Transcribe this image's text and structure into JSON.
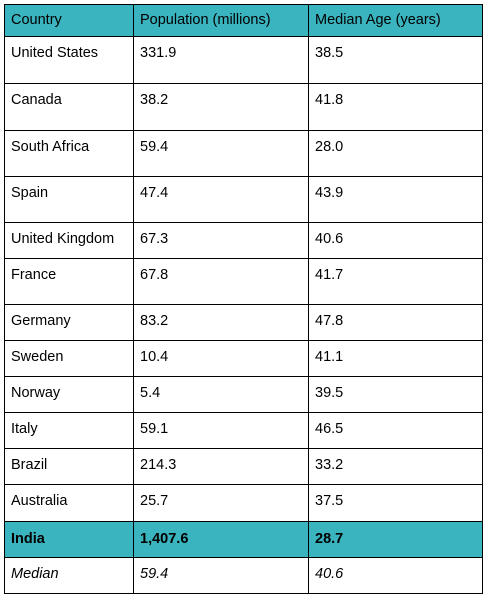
{
  "table": {
    "headers": [
      "Country",
      "Population (millions)",
      "Median Age (years)"
    ],
    "rows": [
      [
        "United States",
        "331.9",
        "38.5"
      ],
      [
        "Canada",
        "38.2",
        "41.8"
      ],
      [
        "South Africa",
        "59.4",
        "28.0"
      ],
      [
        "Spain",
        "47.4",
        "43.9"
      ],
      [
        "United Kingdom",
        "67.3",
        "40.6"
      ],
      [
        "France",
        "67.8",
        "41.7"
      ],
      [
        "Germany",
        "83.2",
        "47.8"
      ],
      [
        "Sweden",
        "10.4",
        "41.1"
      ],
      [
        "Norway",
        "5.4",
        "39.5"
      ],
      [
        "Italy",
        "59.1",
        "46.5"
      ],
      [
        "Brazil",
        "214.3",
        "33.2"
      ],
      [
        "Australia",
        "25.7",
        "37.5"
      ]
    ],
    "highlight_row": [
      "India",
      "1,407.6",
      "28.7"
    ],
    "median_row": [
      "Median",
      "59.4",
      "40.6"
    ],
    "colors": {
      "header_bg": "#3ab4bf",
      "highlight_bg": "#3ab4bf",
      "border": "#000000"
    }
  }
}
